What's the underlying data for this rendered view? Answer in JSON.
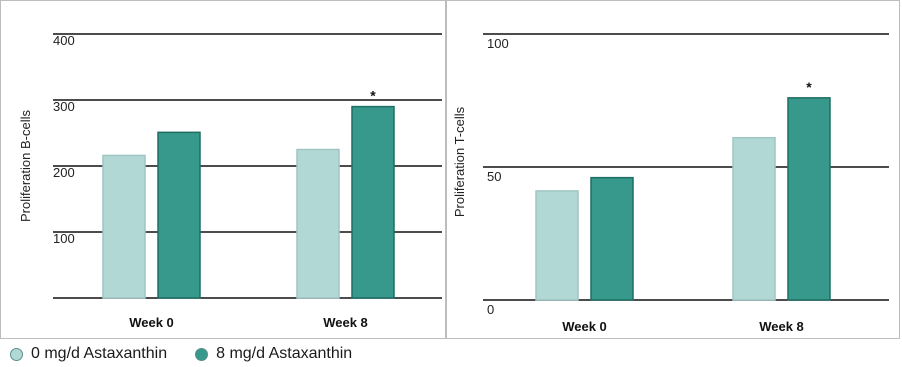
{
  "colors": {
    "series0": "#b2d8d6",
    "series0_border": "#9fc6c3",
    "series8": "#36998c",
    "series8_border": "#1f6e64"
  },
  "legend": [
    {
      "label": "0 mg/d Astaxanthin",
      "color": "#b2d8d6"
    },
    {
      "label": "8 mg/d Astaxanthin",
      "color": "#36998c"
    }
  ],
  "chart_data": [
    {
      "type": "bar",
      "categories": [
        "Week 0",
        "Week 8"
      ],
      "series": [
        {
          "name": "0 mg/d Astaxanthin",
          "values": [
            216,
            225
          ]
        },
        {
          "name": "8 mg/d Astaxanthin",
          "values": [
            251,
            290
          ]
        }
      ],
      "ylabel": "Proliferation B-cells",
      "ylim": [
        0,
        400
      ],
      "yticks": [
        100,
        200,
        300,
        400
      ],
      "grid": true,
      "annotations": [
        {
          "text": "*",
          "category": "Week 8",
          "series": "8 mg/d Astaxanthin"
        }
      ]
    },
    {
      "type": "bar",
      "categories": [
        "Week 0",
        "Week 8"
      ],
      "series": [
        {
          "name": "0 mg/d Astaxanthin",
          "values": [
            41,
            61
          ]
        },
        {
          "name": "8 mg/d Astaxanthin",
          "values": [
            46,
            76
          ]
        }
      ],
      "ylabel": "Proliferation T-cells",
      "ylim": [
        0,
        100
      ],
      "yticks": [
        0,
        50,
        100
      ],
      "grid": true,
      "annotations": [
        {
          "text": "*",
          "category": "Week 8",
          "series": "8 mg/d Astaxanthin"
        }
      ]
    }
  ]
}
